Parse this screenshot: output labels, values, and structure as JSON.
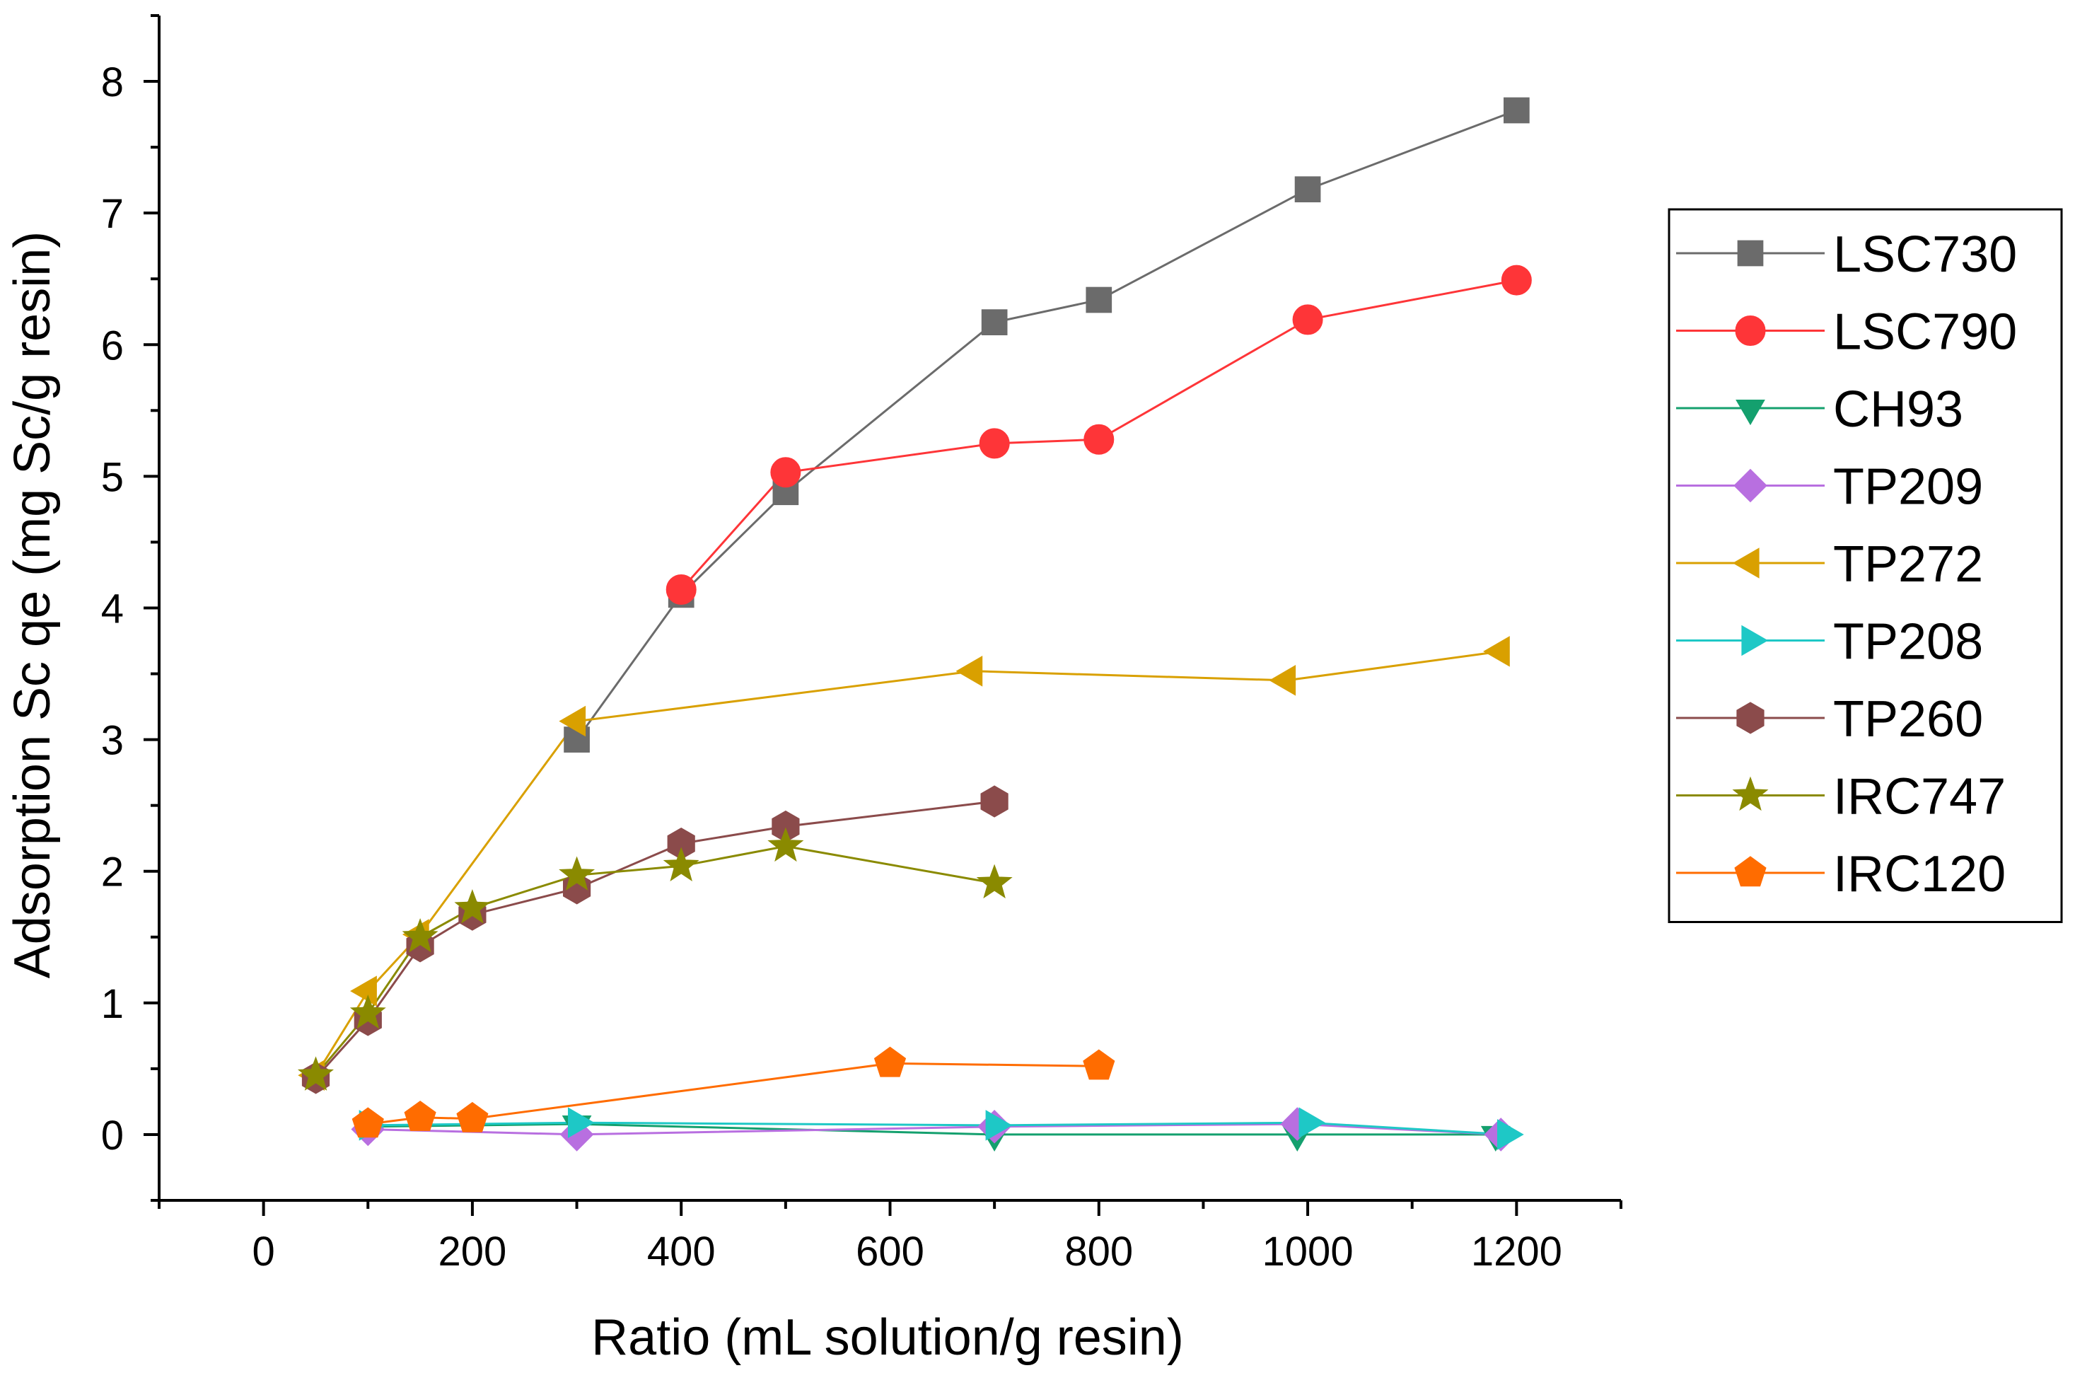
{
  "chart_data": {
    "type": "line",
    "title": "",
    "xlabel": "Ratio (mL solution/g resin)",
    "ylabel": "Adsorption Sc qe (mg Sc/g resin)",
    "xlim": [
      -100,
      1300
    ],
    "ylim": [
      -0.5,
      8.5
    ],
    "x_ticks": [
      0,
      200,
      400,
      600,
      800,
      1000,
      1200
    ],
    "y_ticks": [
      0,
      1,
      2,
      3,
      4,
      5,
      6,
      7,
      8
    ],
    "grid": false,
    "legend_position": "right",
    "series": [
      {
        "name": "LSC730",
        "color": "#6b6b6b",
        "marker": "square",
        "x": [
          300,
          400,
          500,
          700,
          800,
          1000,
          1200
        ],
        "y": [
          3.0,
          4.1,
          4.88,
          6.17,
          6.34,
          7.18,
          7.78
        ]
      },
      {
        "name": "LSC790",
        "color": "#fe3538",
        "marker": "circle",
        "x": [
          400,
          500,
          700,
          800,
          1000,
          1200
        ],
        "y": [
          4.14,
          5.03,
          5.25,
          5.28,
          6.19,
          6.49
        ]
      },
      {
        "name": "CH93",
        "color": "#14a06e",
        "marker": "triangle-down",
        "x": [
          100,
          300,
          700,
          990,
          1180
        ],
        "y": [
          0.06,
          0.08,
          0.0,
          0.0,
          0.0
        ]
      },
      {
        "name": "TP209",
        "color": "#b86fe0",
        "marker": "diamond",
        "x": [
          100,
          300,
          700,
          990,
          1185
        ],
        "y": [
          0.04,
          0.0,
          0.06,
          0.08,
          0.0
        ]
      },
      {
        "name": "TP272",
        "color": "#d9a000",
        "marker": "triangle-left",
        "x": [
          50,
          100,
          150,
          300,
          680,
          980,
          1185
        ],
        "y": [
          0.45,
          1.09,
          1.52,
          3.14,
          3.52,
          3.45,
          3.67
        ]
      },
      {
        "name": "TP208",
        "color": "#1ec8c6",
        "marker": "triangle-right",
        "x": [
          100,
          300,
          700,
          1000,
          1190
        ],
        "y": [
          0.07,
          0.09,
          0.07,
          0.09,
          0.0
        ]
      },
      {
        "name": "TP260",
        "color": "#8b4b4b",
        "marker": "hexagon",
        "x": [
          50,
          100,
          150,
          200,
          300,
          400,
          500,
          700
        ],
        "y": [
          0.43,
          0.87,
          1.43,
          1.67,
          1.87,
          2.21,
          2.34,
          2.53
        ]
      },
      {
        "name": "IRC747",
        "color": "#8a8a00",
        "marker": "star",
        "x": [
          50,
          100,
          150,
          200,
          300,
          400,
          500,
          700
        ],
        "y": [
          0.45,
          0.92,
          1.5,
          1.72,
          1.97,
          2.04,
          2.19,
          1.91
        ]
      },
      {
        "name": "IRC120",
        "color": "#ff6c00",
        "marker": "pentagon",
        "x": [
          100,
          150,
          200,
          600,
          800
        ],
        "y": [
          0.08,
          0.13,
          0.12,
          0.54,
          0.52
        ]
      }
    ]
  }
}
